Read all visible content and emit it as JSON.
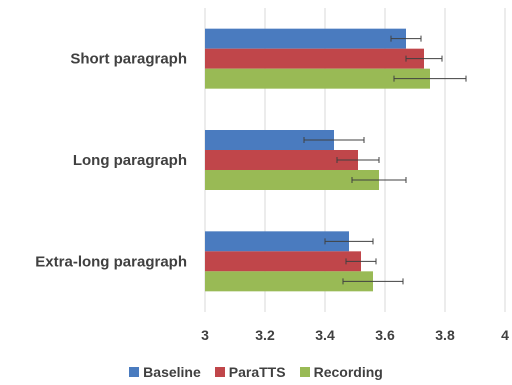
{
  "chart_data": {
    "type": "bar",
    "orientation": "horizontal",
    "categories": [
      "Short paragraph",
      "Long paragraph",
      "Extra-long paragraph"
    ],
    "series": [
      {
        "name": "Baseline",
        "color": "#4a7bbf",
        "values": [
          3.67,
          3.43,
          3.48
        ],
        "errors": [
          0.05,
          0.1,
          0.08
        ]
      },
      {
        "name": "ParaTTS",
        "color": "#c0464a",
        "values": [
          3.73,
          3.51,
          3.52
        ],
        "errors": [
          0.06,
          0.07,
          0.05
        ]
      },
      {
        "name": "Recording",
        "color": "#99ba55",
        "values": [
          3.75,
          3.58,
          3.56
        ],
        "errors": [
          0.12,
          0.09,
          0.1
        ]
      }
    ],
    "xlim": [
      3,
      4
    ],
    "x_ticks": [
      "3",
      "3.2",
      "3.4",
      "3.6",
      "3.8",
      "4"
    ],
    "grid": "vertical",
    "legend_position": "bottom"
  }
}
